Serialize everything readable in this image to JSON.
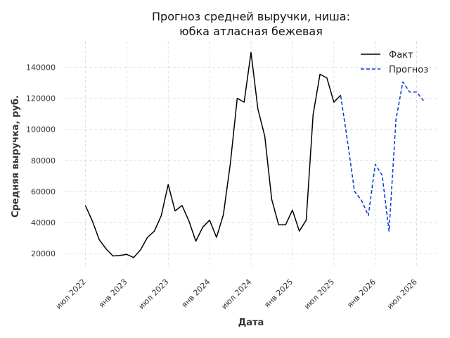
{
  "chart_data": {
    "type": "line",
    "title_lines": [
      "Прогноз средней выручки, ниша:",
      "юбка атласная бежевая"
    ],
    "xlabel": "Дата",
    "ylabel": "Средняя выручка, руб.",
    "x_ticks": [
      {
        "date": "2022-07",
        "label": "июл 2022"
      },
      {
        "date": "2023-01",
        "label": "янв 2023"
      },
      {
        "date": "2023-07",
        "label": "июл 2023"
      },
      {
        "date": "2024-01",
        "label": "янв 2024"
      },
      {
        "date": "2024-07",
        "label": "июл 2024"
      },
      {
        "date": "2025-01",
        "label": "янв 2025"
      },
      {
        "date": "2025-07",
        "label": "июл 2025"
      },
      {
        "date": "2026-01",
        "label": "янв 2026"
      },
      {
        "date": "2026-07",
        "label": "июл 2026"
      }
    ],
    "y_ticks": [
      20000,
      40000,
      60000,
      80000,
      100000,
      120000,
      140000
    ],
    "y_tick_labels": [
      "20000",
      "40000",
      "60000",
      "80000",
      "100000",
      "120000",
      "140000"
    ],
    "xlim": [
      "2022-04",
      "2026-10"
    ],
    "ylim": [
      11000,
      157000
    ],
    "grid": true,
    "legend_position": "top-right",
    "colors": {
      "fact": "#000000",
      "forecast": "#0039d6"
    },
    "series": [
      {
        "name": "Факт",
        "style": "solid",
        "color": "#000000",
        "points": [
          [
            "2022-07",
            51000
          ],
          [
            "2022-08",
            41000
          ],
          [
            "2022-09",
            29000
          ],
          [
            "2022-10",
            23000
          ],
          [
            "2022-11",
            18500
          ],
          [
            "2022-12",
            18800
          ],
          [
            "2023-01",
            19500
          ],
          [
            "2023-02",
            17500
          ],
          [
            "2023-03",
            22500
          ],
          [
            "2023-04",
            30500
          ],
          [
            "2023-05",
            34500
          ],
          [
            "2023-06",
            44500
          ],
          [
            "2023-07",
            64500
          ],
          [
            "2023-08",
            47500
          ],
          [
            "2023-09",
            51000
          ],
          [
            "2023-10",
            41000
          ],
          [
            "2023-11",
            28000
          ],
          [
            "2023-12",
            37000
          ],
          [
            "2024-01",
            41500
          ],
          [
            "2024-02",
            30500
          ],
          [
            "2024-03",
            45000
          ],
          [
            "2024-04",
            78000
          ],
          [
            "2024-05",
            120000
          ],
          [
            "2024-06",
            117500
          ],
          [
            "2024-07",
            149500
          ],
          [
            "2024-08",
            113000
          ],
          [
            "2024-09",
            95500
          ],
          [
            "2024-10",
            55000
          ],
          [
            "2024-11",
            38500
          ],
          [
            "2024-12",
            38500
          ],
          [
            "2025-01",
            48000
          ],
          [
            "2025-02",
            34500
          ],
          [
            "2025-03",
            41500
          ],
          [
            "2025-04",
            109500
          ],
          [
            "2025-05",
            135500
          ],
          [
            "2025-06",
            133000
          ],
          [
            "2025-07",
            117500
          ],
          [
            "2025-08",
            122000
          ]
        ]
      },
      {
        "name": "Прогноз",
        "style": "dashed",
        "color": "#0039d6",
        "points": [
          [
            "2025-08",
            121500
          ],
          [
            "2025-09",
            92000
          ],
          [
            "2025-10",
            60000
          ],
          [
            "2025-11",
            54500
          ],
          [
            "2025-12",
            44500
          ],
          [
            "2026-01",
            77500
          ],
          [
            "2026-02",
            70500
          ],
          [
            "2026-03",
            34500
          ],
          [
            "2026-04",
            106000
          ],
          [
            "2026-05",
            130500
          ],
          [
            "2026-06",
            124000
          ],
          [
            "2026-07",
            124000
          ],
          [
            "2026-08",
            118500
          ]
        ]
      }
    ]
  }
}
